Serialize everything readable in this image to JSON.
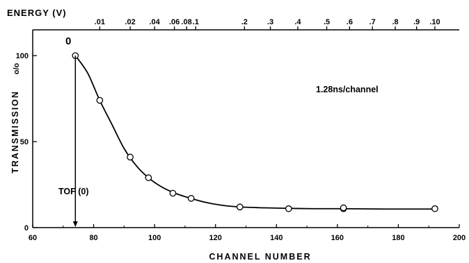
{
  "chart_data": {
    "type": "scatter",
    "title": "",
    "xlabel": "CHANNEL NUMBER",
    "ylabel": "TRANSMISSION",
    "ylabel_unit": "o/o",
    "xlim": [
      60,
      200
    ],
    "ylim": [
      0,
      115
    ],
    "x_ticks": [
      60,
      80,
      100,
      120,
      140,
      160,
      180,
      200
    ],
    "y_ticks": [
      0,
      50,
      100
    ],
    "grid": false,
    "series": [
      {
        "x": [
          74,
          82,
          92,
          98,
          106,
          112,
          128,
          144,
          162,
          162,
          192
        ],
        "y": [
          100,
          74,
          41,
          29,
          20,
          17,
          12,
          11,
          11,
          11.5,
          11
        ]
      }
    ],
    "curve": {
      "x": [
        74,
        78,
        82,
        86,
        90,
        94,
        98,
        102,
        106,
        110,
        116,
        122,
        128,
        136,
        144,
        152,
        162,
        176,
        192
      ],
      "y": [
        100,
        90,
        74,
        60,
        46,
        36,
        29,
        24,
        20.5,
        18,
        15,
        13,
        12,
        11.5,
        11.2,
        11,
        11,
        10.8,
        10.8
      ]
    },
    "top_axis": {
      "label": "ENERGY (V)",
      "ticks": [
        {
          "label": ".01",
          "channel": 82
        },
        {
          "label": ".02",
          "channel": 92
        },
        {
          "label": ".04",
          "channel": 100
        },
        {
          "label": ".06",
          "channel": 106.5
        },
        {
          "label": ".08",
          "channel": 110.5
        },
        {
          "label": ".1",
          "channel": 113.5
        },
        {
          "label": ".2",
          "channel": 129.5
        },
        {
          "label": ".3",
          "channel": 138
        },
        {
          "label": ".4",
          "channel": 147
        },
        {
          "label": ".5",
          "channel": 156.5
        },
        {
          "label": ".6",
          "channel": 164
        },
        {
          "label": ".7",
          "channel": 171.5
        },
        {
          "label": ".8",
          "channel": 179
        },
        {
          "label": ".9",
          "channel": 186
        },
        {
          "label": ".10",
          "channel": 192
        }
      ]
    },
    "annotations": {
      "zero_label": "0",
      "rate": "1.28ns/channel",
      "tof": "TOF (0)",
      "tof_channel": 74
    }
  }
}
